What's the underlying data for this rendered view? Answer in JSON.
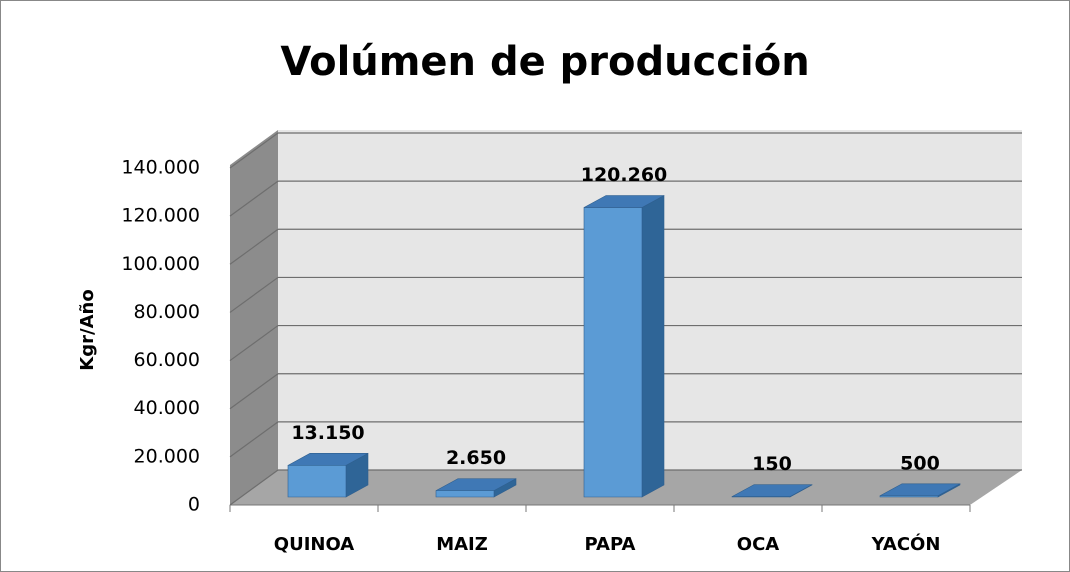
{
  "chart_data": {
    "type": "bar3d",
    "title": "Volúmen de producción",
    "y_label": "Kgr/Año",
    "categories": [
      "QUINOA",
      "MAIZ",
      "PAPA",
      "OCA",
      "YACÓN"
    ],
    "values": [
      13150,
      2650,
      120260,
      150,
      500
    ],
    "value_labels": [
      "13.150",
      "2.650",
      "120.260",
      "150",
      "500"
    ],
    "color": "#5b9bd5",
    "ylim": [
      0,
      140000
    ],
    "yticks": [
      0,
      {
        "value": 20000,
        "label": "20.000"
      },
      {
        "value": 40000,
        "label": "40.000"
      },
      {
        "value": 60000,
        "label": "60.000"
      },
      {
        "value": 80000,
        "label": "80.000"
      },
      {
        "value": 100000,
        "label": "100.000"
      },
      {
        "value": 120000,
        "label": "120.000"
      },
      {
        "value": 140000,
        "label": "140.000"
      }
    ],
    "grid": true
  }
}
